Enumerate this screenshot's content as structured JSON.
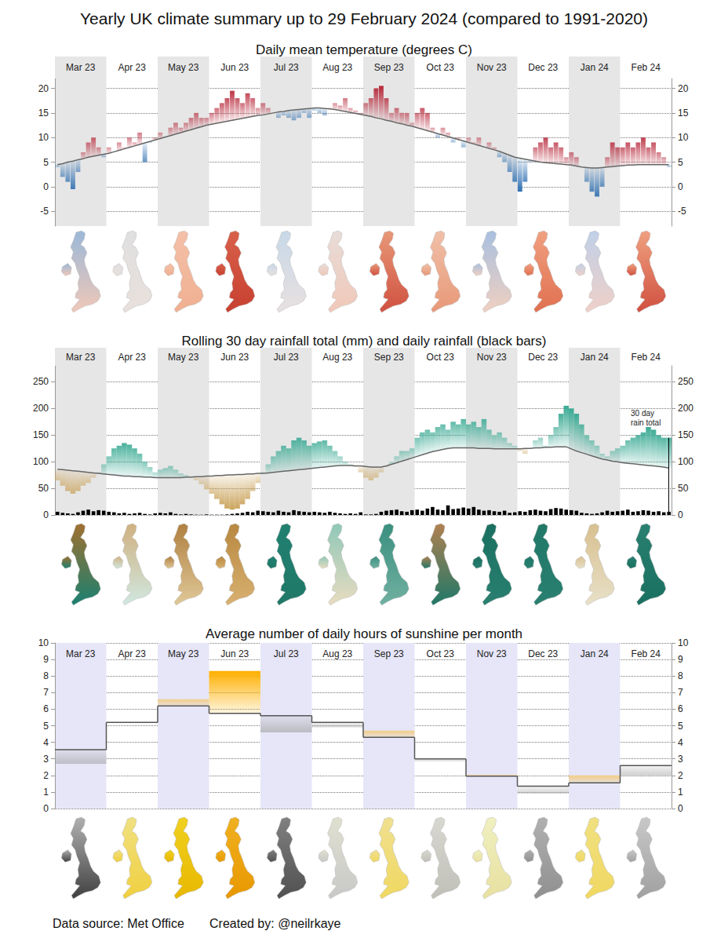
{
  "title": "Yearly UK climate summary up to 29 February 2024 (compared to 1991-2020)",
  "source": "Data source: Met Office",
  "credit": "Created by: @neilrkaye",
  "chart_data": [
    {
      "type": "bar",
      "title": "Daily mean temperature (degrees C)",
      "categories": [
        "Mar 23",
        "Apr 23",
        "May 23",
        "Jun 23",
        "Jul 23",
        "Aug 23",
        "Sep 23",
        "Oct 23",
        "Nov 23",
        "Dec 23",
        "Jan 24",
        "Feb 24"
      ],
      "ylim": [
        -8,
        22
      ],
      "yticks": [
        -5,
        0,
        5,
        10,
        15,
        20
      ],
      "grid": true,
      "series": [
        {
          "type": "bar",
          "color": {
            "above": "#b2182b",
            "below": "#2166ac"
          },
          "values": [
            [
              4,
              2,
              1,
              -0.5,
              3,
              7,
              9,
              10,
              8,
              6
            ],
            [
              8,
              7,
              9,
              8,
              10,
              9,
              11,
              5,
              9,
              10
            ],
            [
              11,
              10,
              12,
              13,
              12,
              13,
              14,
              15,
              14,
              14
            ],
            [
              15,
              16,
              17,
              18,
              19.5,
              18,
              17,
              19,
              18,
              16
            ],
            [
              17,
              16,
              15,
              14,
              14.5,
              14,
              13.5,
              14,
              15,
              14
            ],
            [
              15.5,
              15,
              14.5,
              16,
              17,
              16.5,
              18,
              16,
              15.5,
              15
            ],
            [
              17,
              18,
              20,
              20.5,
              18,
              15,
              16,
              15,
              15,
              13
            ],
            [
              15,
              16,
              15,
              12,
              10,
              12,
              11,
              9,
              10,
              8
            ],
            [
              10,
              9,
              10,
              8,
              9,
              8,
              6,
              5,
              3,
              1
            ],
            [
              -1,
              1,
              5,
              8,
              9,
              10,
              8,
              9,
              8,
              6
            ],
            [
              7,
              6,
              4,
              1,
              -1,
              -2,
              0,
              6,
              9,
              8
            ],
            [
              8,
              9,
              8,
              9,
              10,
              8,
              9,
              7,
              6,
              4
            ]
          ]
        },
        {
          "type": "line",
          "color": "#666666",
          "line_style": "solid",
          "values": [
            [
              4.5,
              4.7,
              5.0,
              5.2,
              5.5,
              5.7,
              6.0,
              6.2,
              6.4,
              6.6
            ],
            [
              6.8,
              7.1,
              7.4,
              7.7,
              8.0,
              8.3,
              8.6,
              8.9,
              9.2,
              9.5
            ],
            [
              9.8,
              10.1,
              10.4,
              10.7,
              11.0,
              11.3,
              11.6,
              11.9,
              12.2,
              12.5
            ],
            [
              12.7,
              12.9,
              13.1,
              13.3,
              13.5,
              13.7,
              13.9,
              14.1,
              14.3,
              14.5
            ],
            [
              14.6,
              14.8,
              15.0,
              15.2,
              15.3,
              15.5,
              15.6,
              15.7,
              15.8,
              15.9
            ],
            [
              16.0,
              16.0,
              15.9,
              15.8,
              15.7,
              15.5,
              15.3,
              15.1,
              14.9,
              14.7
            ],
            [
              14.5,
              14.3,
              14.0,
              13.8,
              13.5,
              13.3,
              13.0,
              12.8,
              12.5,
              12.3
            ],
            [
              12.0,
              11.7,
              11.4,
              11.1,
              10.8,
              10.5,
              10.2,
              9.9,
              9.6,
              9.3
            ],
            [
              9.0,
              8.7,
              8.4,
              8.1,
              7.8,
              7.5,
              7.2,
              6.8,
              6.4,
              6.0
            ],
            [
              5.8,
              5.6,
              5.4,
              5.2,
              5.0,
              4.9,
              4.8,
              4.7,
              4.6,
              4.5
            ],
            [
              4.4,
              4.2,
              4.0,
              3.9,
              3.8,
              3.8,
              3.9,
              4.0,
              4.1,
              4.2
            ],
            [
              4.3,
              4.4,
              4.4,
              4.5,
              4.5,
              4.5,
              4.5,
              4.5,
              4.5,
              4.5
            ]
          ]
        }
      ],
      "map_colors": [
        [
          "#9bb8d8",
          "#f0c8b8"
        ],
        [
          "#e0e0e0",
          "#e8e0dc"
        ],
        [
          "#f4c0a8",
          "#f0b090"
        ],
        [
          "#d8604a",
          "#c84030"
        ],
        [
          "#c8d8e8",
          "#e8e0e0"
        ],
        [
          "#e8dcd8",
          "#f0c8b8"
        ],
        [
          "#e89878",
          "#d05040"
        ],
        [
          "#f0c0a8",
          "#e89878"
        ],
        [
          "#a8c0e0",
          "#f0d0c0"
        ],
        [
          "#f0a080",
          "#e07050"
        ],
        [
          "#c0d0e8",
          "#f0d0c8"
        ],
        [
          "#f0a080",
          "#d05040"
        ]
      ]
    },
    {
      "type": "bar",
      "title": "Rolling 30 day rainfall total (mm) and daily rainfall (black bars)",
      "categories": [
        "Mar 23",
        "Apr 23",
        "May 23",
        "Jun 23",
        "Jul 23",
        "Aug 23",
        "Sep 23",
        "Oct 23",
        "Nov 23",
        "Dec 23",
        "Jan 24",
        "Feb 24"
      ],
      "ylim": [
        0,
        280
      ],
      "yticks": [
        0,
        50,
        100,
        150,
        200,
        250
      ],
      "grid": true,
      "annotation": "30 day\nrain total",
      "series": [
        {
          "type": "bar",
          "color": {
            "above": "#3aaa94",
            "below": "#c9a055"
          },
          "values": [
            [
              65,
              55,
              45,
              40,
              45,
              55,
              60,
              70,
              80,
              95
            ],
            [
              110,
              125,
              130,
              135,
              132,
              125,
              115,
              100,
              90,
              80
            ],
            [
              85,
              88,
              92,
              85,
              78,
              75,
              70,
              65,
              58,
              48
            ],
            [
              40,
              30,
              20,
              12,
              10,
              12,
              20,
              30,
              45,
              60
            ],
            [
              80,
              95,
              110,
              120,
              130,
              125,
              140,
              145,
              140,
              130
            ],
            [
              135,
              138,
              140,
              130,
              120,
              110,
              100,
              95,
              90,
              80
            ],
            [
              70,
              65,
              70,
              80,
              90,
              100,
              110,
              120,
              120,
              125
            ],
            [
              145,
              155,
              160,
              155,
              165,
              170,
              160,
              175,
              170,
              180
            ],
            [
              170,
              175,
              165,
              180,
              160,
              150,
              155,
              145,
              135,
              130
            ],
            [
              120,
              115,
              125,
              140,
              145,
              130,
              150,
              165,
              190,
              205
            ],
            [
              200,
              190,
              170,
              150,
              140,
              130,
              115,
              110,
              120,
              125
            ],
            [
              130,
              140,
              145,
              150,
              155,
              165,
              160,
              150,
              145,
              145
            ]
          ]
        },
        {
          "type": "line",
          "color": "#666666",
          "line_style": "solid",
          "values": [
            [
              86,
              85,
              84,
              83,
              82,
              81,
              80,
              79,
              78,
              77
            ],
            [
              76,
              75,
              74,
              73,
              73,
              72,
              72,
              71,
              71,
              70
            ],
            [
              70,
              70,
              70,
              70,
              70,
              71,
              71,
              72,
              72,
              73
            ],
            [
              73,
              74,
              74,
              75,
              75,
              76,
              76,
              77,
              77,
              78
            ],
            [
              78,
              79,
              80,
              81,
              82,
              83,
              84,
              85,
              86,
              87
            ],
            [
              88,
              89,
              90,
              91,
              92,
              93,
              93,
              93,
              92,
              92
            ],
            [
              91,
              90,
              90,
              90,
              92,
              95,
              98,
              101,
              104,
              107
            ],
            [
              110,
              113,
              116,
              119,
              121,
              123,
              125,
              126,
              126,
              126
            ],
            [
              126,
              126,
              125,
              125,
              125,
              124,
              124,
              124,
              124,
              124
            ],
            [
              124,
              125,
              125,
              126,
              126,
              127,
              127,
              128,
              128,
              128
            ],
            [
              124,
              120,
              117,
              114,
              111,
              108,
              105,
              103,
              101,
              100
            ],
            [
              98,
              97,
              96,
              95,
              94,
              93,
              92,
              91,
              90,
              88
            ]
          ]
        },
        {
          "type": "bar",
          "color": "#000000",
          "values": [
            [
              6,
              4,
              3,
              2,
              5,
              8,
              10,
              7,
              9,
              8
            ],
            [
              6,
              5,
              3,
              4,
              2,
              3,
              4,
              2,
              1,
              3
            ],
            [
              4,
              3,
              5,
              2,
              1,
              2,
              1,
              0.5,
              0.5,
              1
            ],
            [
              0.5,
              0.5,
              0.5,
              1,
              2,
              3,
              4,
              6,
              5,
              8
            ],
            [
              7,
              6,
              5,
              8,
              6,
              5,
              9,
              7,
              6,
              5
            ],
            [
              6,
              5,
              4,
              6,
              4,
              3,
              2,
              3,
              2,
              5
            ],
            [
              1,
              1,
              2,
              6,
              8,
              9,
              10,
              7,
              6,
              9
            ],
            [
              10,
              8,
              12,
              15,
              10,
              9,
              18,
              11,
              12,
              14
            ],
            [
              12,
              15,
              10,
              8,
              9,
              7,
              6,
              8,
              4,
              5
            ],
            [
              7,
              6,
              9,
              10,
              8,
              7,
              11,
              13,
              12,
              10
            ],
            [
              9,
              8,
              4,
              3,
              2,
              3,
              5,
              8,
              6,
              7
            ],
            [
              8,
              10,
              6,
              7,
              9,
              8,
              6,
              7,
              5,
              6
            ]
          ]
        }
      ],
      "map_colors": [
        [
          "#a07030",
          "#1a8070"
        ],
        [
          "#d0b080",
          "#d0e8e0"
        ],
        [
          "#b08040",
          "#e0c898"
        ],
        [
          "#b88840",
          "#d8b070"
        ],
        [
          "#208070",
          "#207868"
        ],
        [
          "#90c8b8",
          "#e8dcc0"
        ],
        [
          "#3a9080",
          "#70b0a0"
        ],
        [
          "#b08050",
          "#1f7868"
        ],
        [
          "#1a7060",
          "#2a8070"
        ],
        [
          "#207868",
          "#2a8070"
        ],
        [
          "#d8c090",
          "#e8e0c8"
        ],
        [
          "#2a8070",
          "#1a7060"
        ]
      ]
    },
    {
      "type": "bar",
      "title": "Average number of daily hours of sunshine per month",
      "categories": [
        "Mar 23",
        "Apr 23",
        "May 23",
        "Jun 23",
        "Jul 23",
        "Aug 23",
        "Sep 23",
        "Oct 23",
        "Nov 23",
        "Dec 23",
        "Jan 24",
        "Feb 24"
      ],
      "ylim": [
        0,
        10
      ],
      "yticks": [
        0,
        1,
        2,
        3,
        4,
        5,
        6,
        7,
        8,
        9,
        10
      ],
      "grid": true,
      "series": [
        {
          "type": "bar",
          "color": {
            "above": "#ffb000",
            "below": "#a0a0a0"
          },
          "values": [
            2.7,
            5.2,
            6.6,
            8.3,
            4.6,
            4.9,
            4.7,
            2.85,
            2.05,
            0.9,
            2.0,
            2.0
          ]
        },
        {
          "type": "line",
          "color": "#555555",
          "line_style": "step",
          "values": [
            3.55,
            5.2,
            6.2,
            5.75,
            5.6,
            5.2,
            4.3,
            3.0,
            1.95,
            1.35,
            1.55,
            2.6
          ]
        }
      ],
      "map_colors": [
        [
          "#b0b0b0",
          "#404040"
        ],
        [
          "#f0e080",
          "#f0d040"
        ],
        [
          "#f0d020",
          "#e8b800"
        ],
        [
          "#f0b020",
          "#e89800"
        ],
        [
          "#808080",
          "#505050"
        ],
        [
          "#e0e0d0",
          "#c8c8c8"
        ],
        [
          "#f0e090",
          "#f0d860"
        ],
        [
          "#d8d8d0",
          "#c0c0b8"
        ],
        [
          "#f0f0c0",
          "#e8e0a0"
        ],
        [
          "#b0b0b0",
          "#909090"
        ],
        [
          "#f0e080",
          "#f0d860"
        ],
        [
          "#c8c8c8",
          "#a0a0a0"
        ]
      ]
    }
  ]
}
